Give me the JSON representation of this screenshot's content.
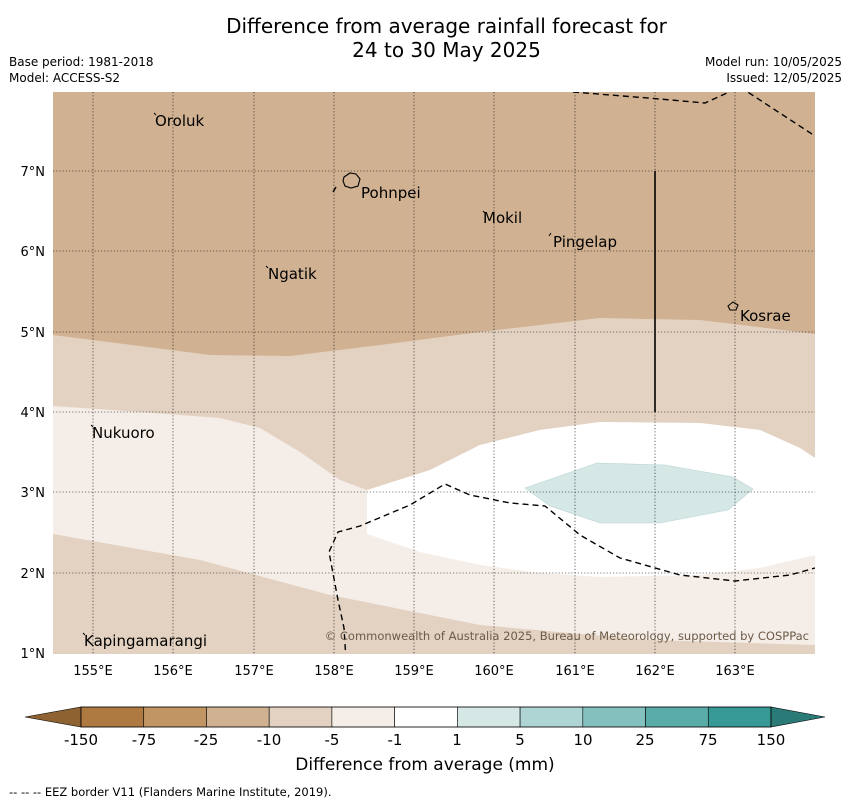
{
  "header": {
    "title_line1": "Difference from average rainfall forecast for",
    "title_line2": "24 to 30 May 2025",
    "base_period": "Base period: 1981-2018",
    "model": "Model: ACCESS-S2",
    "model_run": "Model run: 10/05/2025",
    "issued": "Issued: 12/05/2025"
  },
  "map": {
    "lat_labels": [
      "7°N",
      "6°N",
      "5°N",
      "4°N",
      "3°N",
      "2°N",
      "1°N"
    ],
    "lon_labels": [
      "155°E",
      "156°E",
      "157°E",
      "158°E",
      "159°E",
      "160°E",
      "161°E",
      "162°E",
      "163°E"
    ],
    "places": [
      "Oroluk",
      "Pohnpei",
      "Mokil",
      "Pingelap",
      "Ngatik",
      "Kosrae",
      "Nukuoro",
      "Kapingamarangi"
    ],
    "copyright": "© Commonwealth of Australia 2025, Bureau of Meteorology, supported by COSPPac"
  },
  "colorbar": {
    "labels": [
      "-150",
      "-75",
      "-25",
      "-10",
      "-5",
      "-1",
      "1",
      "5",
      "10",
      "25",
      "75",
      "150"
    ],
    "colors": [
      "#ae7a42",
      "#c29664",
      "#d0b191",
      "#e3d2c1",
      "#f5ede7",
      "#ffffff",
      "#d5e8e6",
      "#aed5d3",
      "#84c1be",
      "#5aaca8",
      "#379995"
    ],
    "under_color": "#8f6331",
    "over_color": "#2a7b78",
    "axis_title": "Difference from average (mm)"
  },
  "footer": "--  --  -- EEZ border V11 (Flanders Marine Institute, 2019)."
}
